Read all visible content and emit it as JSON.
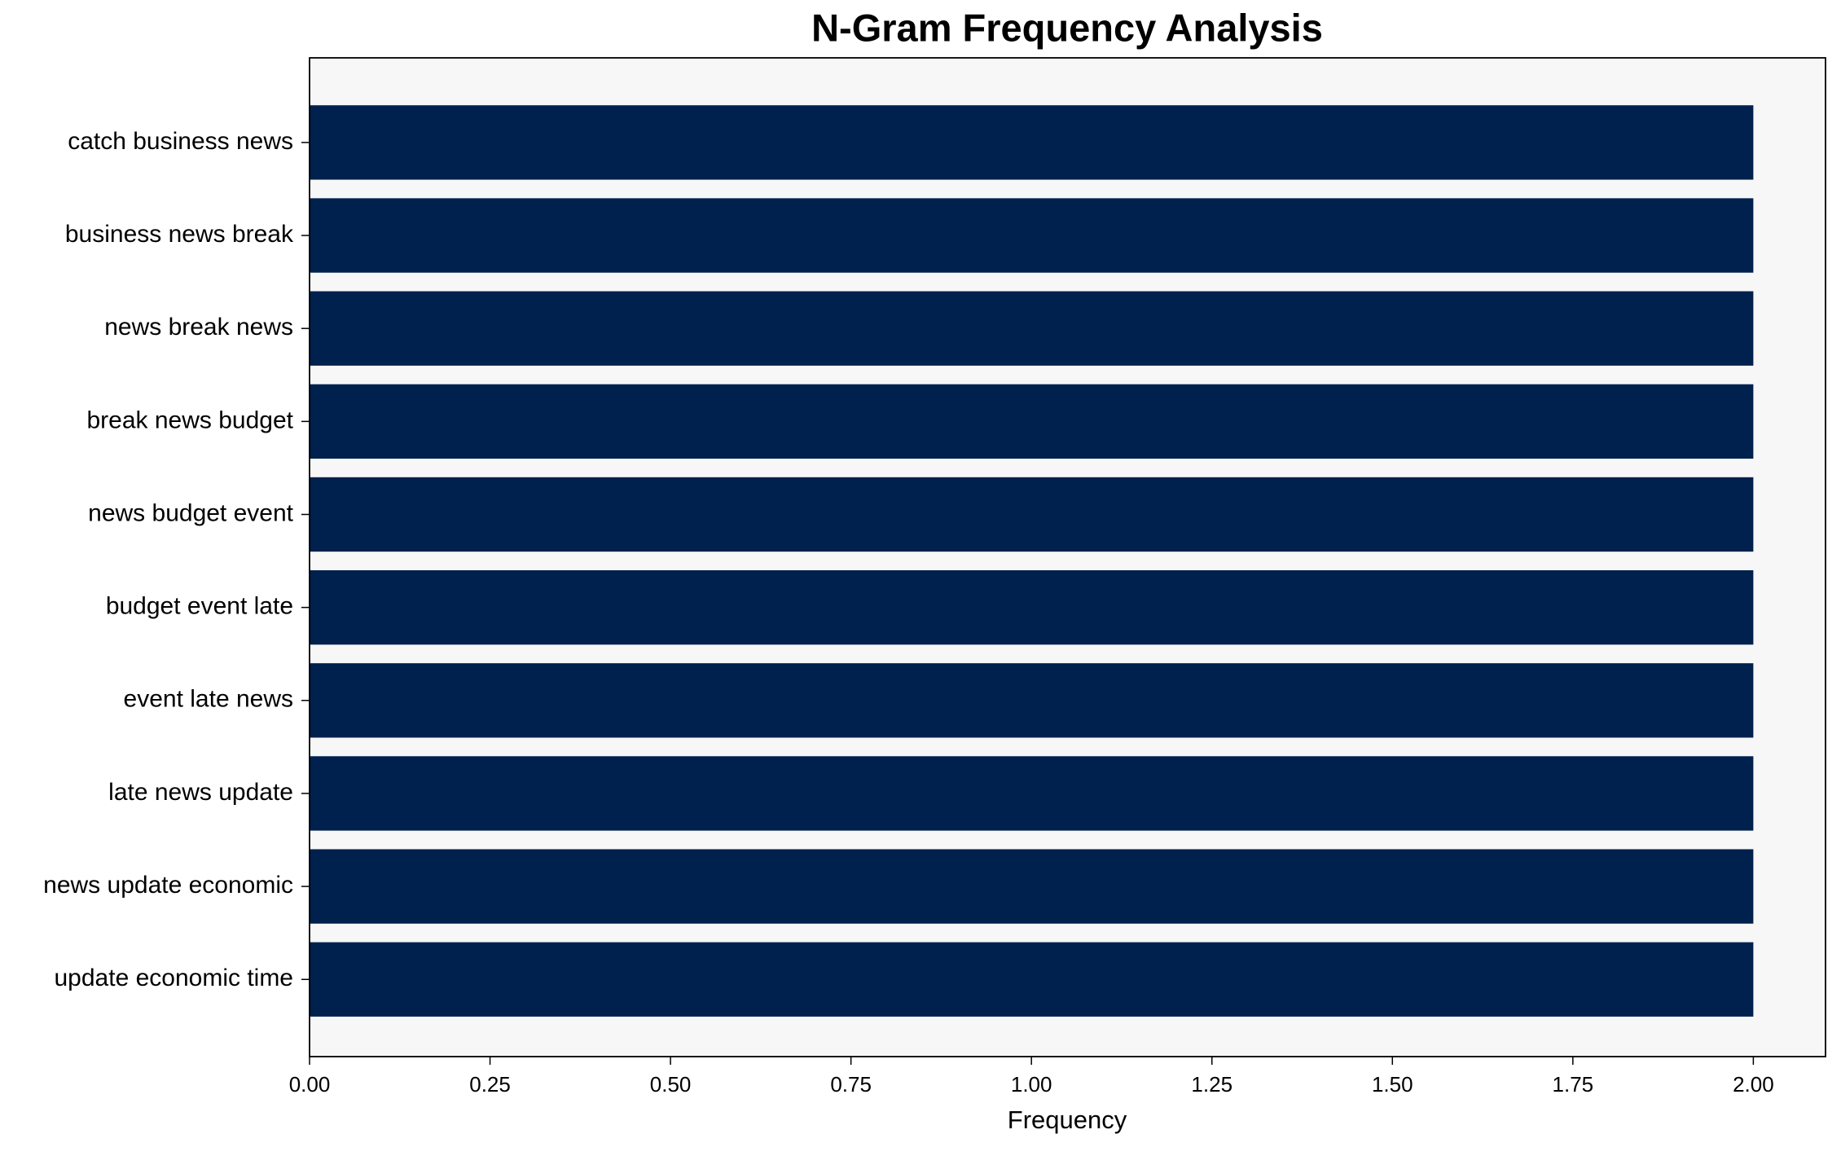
{
  "chart_data": {
    "type": "barh",
    "title": "N-Gram Frequency Analysis",
    "x_label": "Frequency",
    "categories": [
      "catch business news",
      "business news break",
      "news break news",
      "break news budget",
      "news budget event",
      "budget event late",
      "event late news",
      "late news update",
      "news update economic",
      "update economic time"
    ],
    "values": [
      2,
      2,
      2,
      2,
      2,
      2,
      2,
      2,
      2,
      2
    ],
    "color": "#00214d",
    "xlim": [
      0,
      2.1
    ],
    "xticks": [
      {
        "value": 0,
        "label": "0.00"
      },
      {
        "value": 0.25,
        "label": "0.25"
      },
      {
        "value": 0.5,
        "label": "0.50"
      },
      {
        "value": 0.75,
        "label": "0.75"
      },
      {
        "value": 1,
        "label": "1.00"
      },
      {
        "value": 1.25,
        "label": "1.25"
      },
      {
        "value": 1.5,
        "label": "1.50"
      },
      {
        "value": 1.75,
        "label": "1.75"
      },
      {
        "value": 2,
        "label": "2.00"
      }
    ],
    "background": "#f7f7f7"
  }
}
